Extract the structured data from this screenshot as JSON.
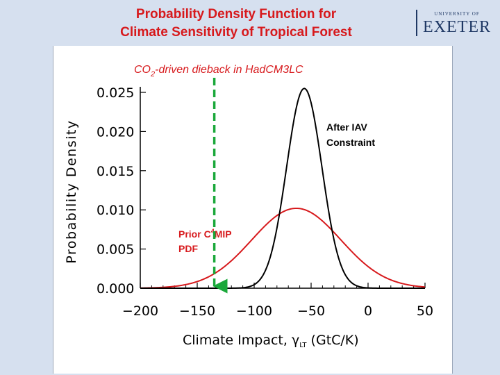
{
  "header": {
    "title_line1": "Probability Density Function for",
    "title_line2": "Climate Sensitivity of Tropical Forest"
  },
  "logo": {
    "university_of": "UNIVERSITY OF",
    "name": "EXETER"
  },
  "colors": {
    "background": "#d6e0ef",
    "title": "#d7191c",
    "logo": "#1f3864",
    "prior_curve": "#d7191c",
    "posterior_curve": "#000000",
    "marker": "#1aa83a"
  },
  "chart_data": {
    "type": "line",
    "title": "",
    "xlabel": "Climate Impact, γ",
    "xlabel_subscript": "LT",
    "xlabel_units": "(GtC/K)",
    "ylabel": "Probability Density",
    "xlim": [
      -200,
      50
    ],
    "ylim": [
      0,
      0.025
    ],
    "xticks": [
      -200,
      -150,
      -100,
      -50,
      0,
      50
    ],
    "yticks": [
      0.0,
      0.005,
      0.01,
      0.015,
      0.02,
      0.025
    ],
    "xtick_labels": [
      "−200",
      "−150",
      "−100",
      "−50",
      "0",
      "50"
    ],
    "ytick_labels": [
      "0.000",
      "0.005",
      "0.010",
      "0.015",
      "0.020",
      "0.025"
    ],
    "series": [
      {
        "name": "Prior C4MIP PDF",
        "label_line1": "Prior C",
        "label_superscript": "4",
        "label_line1_end": "MIP",
        "label_line2": "PDF",
        "distribution": "normal",
        "mean": -63,
        "sd": 39,
        "peak": 0.0102
      },
      {
        "name": "After IAV Constraint",
        "label_line1": "After IAV",
        "label_line2": "Constraint",
        "distribution": "normal",
        "mean": -56,
        "sd": 15.5,
        "peak": 0.0255
      }
    ],
    "annotation": {
      "text_prefix": "CO",
      "text_subscript": "2",
      "text_suffix": "-driven dieback in HadCM3LC",
      "x": -135,
      "style": "dashed arrow"
    }
  }
}
